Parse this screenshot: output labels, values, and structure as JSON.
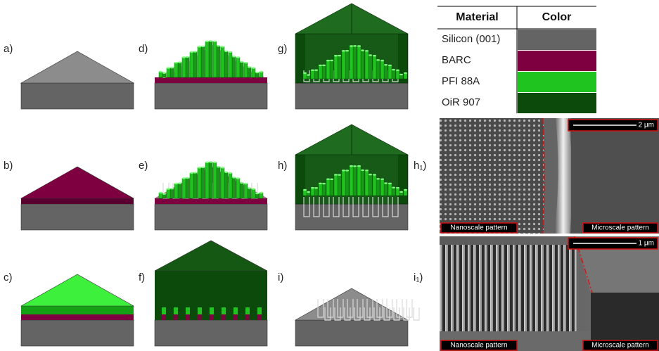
{
  "panel_labels": [
    "a)",
    "b)",
    "c)",
    "d)",
    "e)",
    "f)",
    "g)",
    "h)",
    "i)",
    "h₁)",
    "i₁)"
  ],
  "legend_table": {
    "headers": [
      "Material",
      "Color"
    ],
    "rows": [
      {
        "material": "Silicon (001)",
        "color": "#646464"
      },
      {
        "material": "BARC",
        "color": "#7f0040"
      },
      {
        "material": "PFI 88A",
        "color": "#1fc41f"
      },
      {
        "material": "OiR 907",
        "color": "#0b4a0b"
      }
    ]
  },
  "sem_images": [
    {
      "left_label": "Nanoscale pattern",
      "right_label": "Microscale pattern",
      "scale_bar": "2 μm"
    },
    {
      "left_label": "Nanoscale pattern",
      "right_label": "Microscale pattern",
      "scale_bar": "1 μm"
    }
  ]
}
